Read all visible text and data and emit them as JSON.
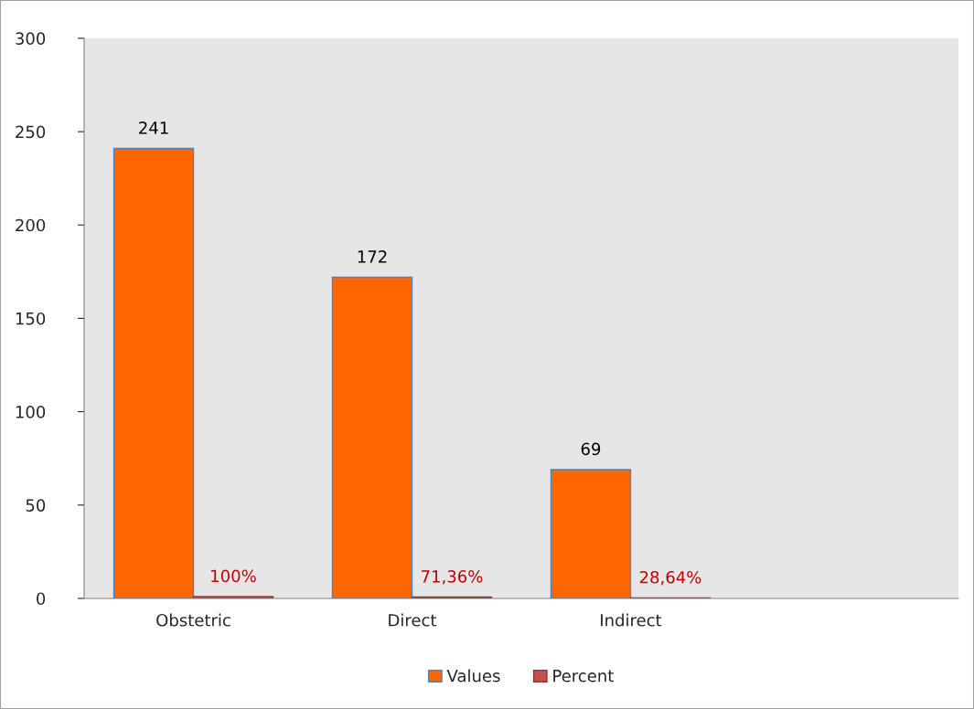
{
  "chart_data": {
    "type": "bar",
    "categories": [
      "Obstetric",
      "Direct",
      "Indirect",
      null
    ],
    "series": [
      {
        "name": "Values",
        "color": "#ff6600",
        "values": [
          241,
          172,
          69,
          null
        ]
      },
      {
        "name": "Percent",
        "color": "#c0504d",
        "values": [
          1,
          0.7136,
          0.2864,
          null
        ],
        "value_labels": [
          "100%",
          "71,36%",
          "28,64%",
          null
        ]
      }
    ],
    "ylim": [
      0,
      300
    ],
    "yticks": [
      0,
      50,
      100,
      150,
      200,
      250,
      300
    ],
    "data_labels": true,
    "grid": false,
    "legend": "bottom"
  }
}
